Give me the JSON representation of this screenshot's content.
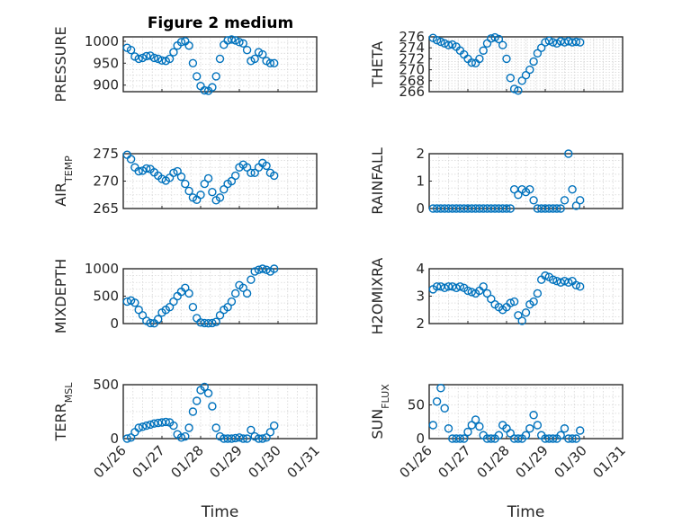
{
  "title": "Figure 2 medium",
  "x_tick_labels": [
    "01/26",
    "01/27",
    "01/28",
    "01/29",
    "01/30",
    "01/31"
  ],
  "x_label": "Time",
  "marker_color": "#0072BD",
  "chart_data": [
    {
      "type": "scatter",
      "ylabel": "PRESSURE",
      "ylim": [
        885,
        1010
      ],
      "yticks": [
        900,
        950,
        1000
      ],
      "xlim": [
        0,
        5
      ],
      "grid": true,
      "x": [
        0.1,
        0.2,
        0.3,
        0.4,
        0.5,
        0.6,
        0.7,
        0.8,
        0.9,
        1.0,
        1.1,
        1.2,
        1.3,
        1.4,
        1.5,
        1.6,
        1.7,
        1.8,
        1.9,
        2.0,
        2.1,
        2.2,
        2.3,
        2.4,
        2.5,
        2.6,
        2.7,
        2.8,
        2.9,
        3.0,
        3.1,
        3.2,
        3.3,
        3.4,
        3.5,
        3.6,
        3.7,
        3.8,
        3.9
      ],
      "y": [
        985,
        980,
        965,
        960,
        962,
        966,
        967,
        962,
        960,
        956,
        955,
        960,
        975,
        990,
        998,
        1000,
        990,
        950,
        920,
        898,
        888,
        887,
        895,
        920,
        960,
        992,
        1002,
        1004,
        1002,
        998,
        995,
        980,
        955,
        960,
        975,
        970,
        955,
        950,
        950
      ]
    },
    {
      "type": "scatter",
      "ylabel": "THETA",
      "ylim": [
        266,
        276
      ],
      "yticks": [
        266,
        268,
        270,
        272,
        274,
        276
      ],
      "xlim": [
        0,
        5
      ],
      "grid": true,
      "x": [
        0.1,
        0.2,
        0.3,
        0.4,
        0.5,
        0.6,
        0.7,
        0.8,
        0.9,
        1.0,
        1.1,
        1.2,
        1.3,
        1.4,
        1.5,
        1.6,
        1.7,
        1.8,
        1.9,
        2.0,
        2.1,
        2.2,
        2.3,
        2.4,
        2.5,
        2.6,
        2.7,
        2.8,
        2.9,
        3.0,
        3.1,
        3.2,
        3.3,
        3.4,
        3.5,
        3.6,
        3.7,
        3.8,
        3.9
      ],
      "y": [
        275.8,
        275.4,
        275.1,
        274.8,
        274.5,
        274.6,
        274.2,
        273.5,
        272.8,
        272.0,
        271.3,
        271.2,
        272.0,
        273.5,
        274.8,
        275.7,
        275.9,
        275.6,
        274.5,
        272.0,
        268.5,
        266.5,
        266.2,
        268.0,
        269.0,
        270.0,
        271.5,
        273.0,
        274.0,
        275.0,
        275.3,
        275.0,
        274.8,
        275.2,
        275.0,
        275.2,
        275.0,
        275.1,
        275.0
      ]
    },
    {
      "type": "scatter",
      "ylabel": "AIR_TEMP",
      "ylim": [
        265,
        275
      ],
      "yticks": [
        265,
        270,
        275
      ],
      "xlim": [
        0,
        5
      ],
      "grid": true,
      "x": [
        0.1,
        0.2,
        0.3,
        0.4,
        0.5,
        0.6,
        0.7,
        0.8,
        0.9,
        1.0,
        1.1,
        1.2,
        1.3,
        1.4,
        1.5,
        1.6,
        1.7,
        1.8,
        1.9,
        2.0,
        2.1,
        2.2,
        2.3,
        2.4,
        2.5,
        2.6,
        2.7,
        2.8,
        2.9,
        3.0,
        3.1,
        3.2,
        3.3,
        3.4,
        3.5,
        3.6,
        3.7,
        3.8,
        3.9
      ],
      "y": [
        274.8,
        274.0,
        272.5,
        271.8,
        271.9,
        272.3,
        272.2,
        271.6,
        271.0,
        270.4,
        270.1,
        270.6,
        271.5,
        271.8,
        270.8,
        269.5,
        268.2,
        267.0,
        266.6,
        267.5,
        269.5,
        270.5,
        268.0,
        266.5,
        267.0,
        268.5,
        269.5,
        270.0,
        271.0,
        272.5,
        273.0,
        272.5,
        271.5,
        271.5,
        272.5,
        273.3,
        272.8,
        271.5,
        271.0
      ]
    },
    {
      "type": "scatter",
      "ylabel": "RAINFALL",
      "ylim": [
        0,
        2
      ],
      "yticks": [
        0,
        1,
        2
      ],
      "xlim": [
        0,
        5
      ],
      "grid": true,
      "x": [
        0.1,
        0.2,
        0.3,
        0.4,
        0.5,
        0.6,
        0.7,
        0.8,
        0.9,
        1.0,
        1.1,
        1.2,
        1.3,
        1.4,
        1.5,
        1.6,
        1.7,
        1.8,
        1.9,
        2.0,
        2.1,
        2.2,
        2.3,
        2.4,
        2.5,
        2.6,
        2.7,
        2.8,
        2.9,
        3.0,
        3.1,
        3.2,
        3.3,
        3.4,
        3.5,
        3.6,
        3.7,
        3.8,
        3.9
      ],
      "y": [
        0,
        0,
        0,
        0,
        0,
        0,
        0,
        0,
        0,
        0,
        0,
        0,
        0,
        0,
        0,
        0,
        0,
        0,
        0,
        0,
        0,
        0.7,
        0.5,
        0.7,
        0.6,
        0.7,
        0.3,
        0,
        0,
        0,
        0,
        0,
        0,
        0,
        0.3,
        2.0,
        0.7,
        0.1,
        0.3
      ]
    },
    {
      "type": "scatter",
      "ylabel": "MIXDEPTH",
      "ylim": [
        0,
        1000
      ],
      "yticks": [
        0,
        500,
        1000
      ],
      "xlim": [
        0,
        5
      ],
      "grid": true,
      "x": [
        0.1,
        0.2,
        0.3,
        0.4,
        0.5,
        0.6,
        0.7,
        0.8,
        0.9,
        1.0,
        1.1,
        1.2,
        1.3,
        1.4,
        1.5,
        1.6,
        1.7,
        1.8,
        1.9,
        2.0,
        2.1,
        2.2,
        2.3,
        2.4,
        2.5,
        2.6,
        2.7,
        2.8,
        2.9,
        3.0,
        3.1,
        3.2,
        3.3,
        3.4,
        3.5,
        3.6,
        3.7,
        3.8,
        3.9
      ],
      "y": [
        400,
        420,
        380,
        250,
        150,
        50,
        10,
        5,
        80,
        200,
        250,
        300,
        400,
        500,
        580,
        650,
        550,
        300,
        100,
        20,
        10,
        5,
        10,
        30,
        150,
        250,
        300,
        400,
        550,
        700,
        650,
        550,
        800,
        950,
        980,
        1000,
        980,
        950,
        1000
      ]
    },
    {
      "type": "scatter",
      "ylabel": "H2OMIXRA",
      "ylim": [
        2,
        4
      ],
      "yticks": [
        2,
        3,
        4
      ],
      "xlim": [
        0,
        5
      ],
      "grid": true,
      "x": [
        0.1,
        0.2,
        0.3,
        0.4,
        0.5,
        0.6,
        0.7,
        0.8,
        0.9,
        1.0,
        1.1,
        1.2,
        1.3,
        1.4,
        1.5,
        1.6,
        1.7,
        1.8,
        1.9,
        2.0,
        2.1,
        2.2,
        2.3,
        2.4,
        2.5,
        2.6,
        2.7,
        2.8,
        2.9,
        3.0,
        3.1,
        3.2,
        3.3,
        3.4,
        3.5,
        3.6,
        3.7,
        3.8,
        3.9
      ],
      "y": [
        3.25,
        3.35,
        3.35,
        3.3,
        3.35,
        3.35,
        3.3,
        3.35,
        3.3,
        3.2,
        3.15,
        3.1,
        3.2,
        3.35,
        3.1,
        2.9,
        2.7,
        2.6,
        2.5,
        2.6,
        2.75,
        2.8,
        2.3,
        2.1,
        2.4,
        2.7,
        2.8,
        3.1,
        3.6,
        3.75,
        3.7,
        3.6,
        3.55,
        3.5,
        3.55,
        3.5,
        3.55,
        3.4,
        3.35
      ]
    },
    {
      "type": "scatter",
      "ylabel": "TERR_MSL",
      "ylim": [
        0,
        500
      ],
      "yticks": [
        0,
        500
      ],
      "xlim": [
        0,
        5
      ],
      "grid": true,
      "x": [
        0.1,
        0.2,
        0.3,
        0.4,
        0.5,
        0.6,
        0.7,
        0.8,
        0.9,
        1.0,
        1.1,
        1.2,
        1.3,
        1.4,
        1.5,
        1.6,
        1.7,
        1.8,
        1.9,
        2.0,
        2.1,
        2.2,
        2.3,
        2.4,
        2.5,
        2.6,
        2.7,
        2.8,
        2.9,
        3.0,
        3.1,
        3.2,
        3.3,
        3.4,
        3.5,
        3.6,
        3.7,
        3.8,
        3.9
      ],
      "y": [
        0,
        10,
        60,
        100,
        110,
        120,
        130,
        140,
        145,
        150,
        155,
        150,
        120,
        40,
        10,
        20,
        100,
        250,
        350,
        450,
        480,
        420,
        300,
        100,
        20,
        0,
        0,
        0,
        5,
        10,
        0,
        0,
        80,
        20,
        0,
        0,
        10,
        60,
        120
      ]
    },
    {
      "type": "scatter",
      "ylabel": "SUN_FLUX",
      "ylim": [
        0,
        80
      ],
      "yticks": [
        0,
        50
      ],
      "xlim": [
        0,
        5
      ],
      "grid": true,
      "x": [
        0.1,
        0.2,
        0.3,
        0.4,
        0.5,
        0.6,
        0.7,
        0.8,
        0.9,
        1.0,
        1.1,
        1.2,
        1.3,
        1.4,
        1.5,
        1.6,
        1.7,
        1.8,
        1.9,
        2.0,
        2.1,
        2.2,
        2.3,
        2.4,
        2.5,
        2.6,
        2.7,
        2.8,
        2.9,
        3.0,
        3.1,
        3.2,
        3.3,
        3.4,
        3.5,
        3.6,
        3.7,
        3.8,
        3.9
      ],
      "y": [
        20,
        55,
        75,
        45,
        15,
        0,
        0,
        0,
        0,
        10,
        20,
        28,
        18,
        5,
        0,
        0,
        0,
        5,
        20,
        15,
        8,
        0,
        0,
        0,
        5,
        15,
        35,
        20,
        5,
        0,
        0,
        0,
        0,
        5,
        15,
        0,
        0,
        0,
        12
      ]
    }
  ]
}
